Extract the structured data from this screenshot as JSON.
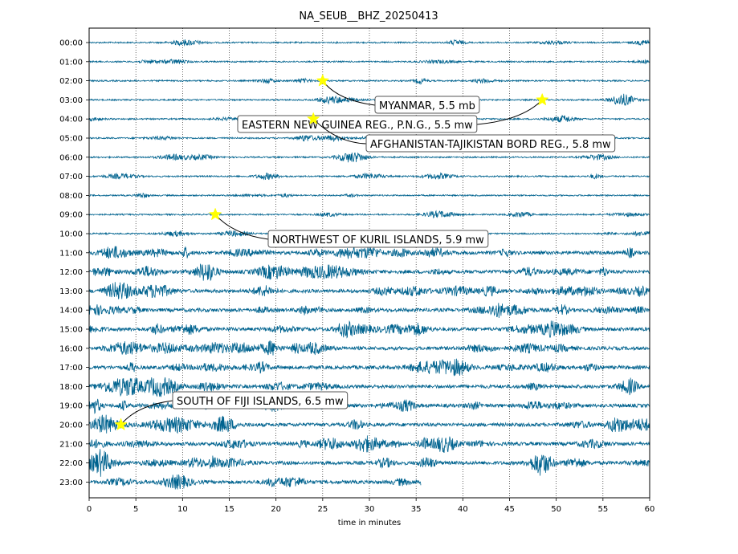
{
  "chart_data": {
    "type": "line",
    "title": "NA_SEUB__BHZ_20250413",
    "xlabel": "time in minutes",
    "ylabel": "",
    "xlim": [
      0,
      60
    ],
    "x_ticks": [
      0,
      5,
      10,
      15,
      20,
      25,
      30,
      35,
      40,
      45,
      50,
      55,
      60
    ],
    "row_labels": [
      "00:00",
      "01:00",
      "02:00",
      "03:00",
      "04:00",
      "05:00",
      "06:00",
      "07:00",
      "08:00",
      "09:00",
      "10:00",
      "11:00",
      "12:00",
      "13:00",
      "14:00",
      "15:00",
      "16:00",
      "17:00",
      "18:00",
      "19:00",
      "20:00",
      "21:00",
      "22:00",
      "23:00"
    ],
    "trace_color": "#00638f",
    "marker_color": "#ffff00",
    "last_row_end_minute": 35.5,
    "grid": "vertical dotted lines at x ticks",
    "annotations": [
      {
        "text": "MYANMAR, 5.5 mb",
        "row": 2,
        "minute": 25.0
      },
      {
        "text": "EASTERN NEW GUINEA REG., P.N.G., 5.5 mw",
        "row": 3,
        "minute": 48.5
      },
      {
        "text": "AFGHANISTAN-TAJIKISTAN BORD REG., 5.8 mw",
        "row": 4,
        "minute": 24.0
      },
      {
        "text": "NORTHWEST OF KURIL ISLANDS, 5.9 mw",
        "row": 9,
        "minute": 13.5
      },
      {
        "text": "SOUTH OF FIJI ISLANDS, 6.5 mw",
        "row": 20,
        "minute": 3.4
      }
    ]
  }
}
